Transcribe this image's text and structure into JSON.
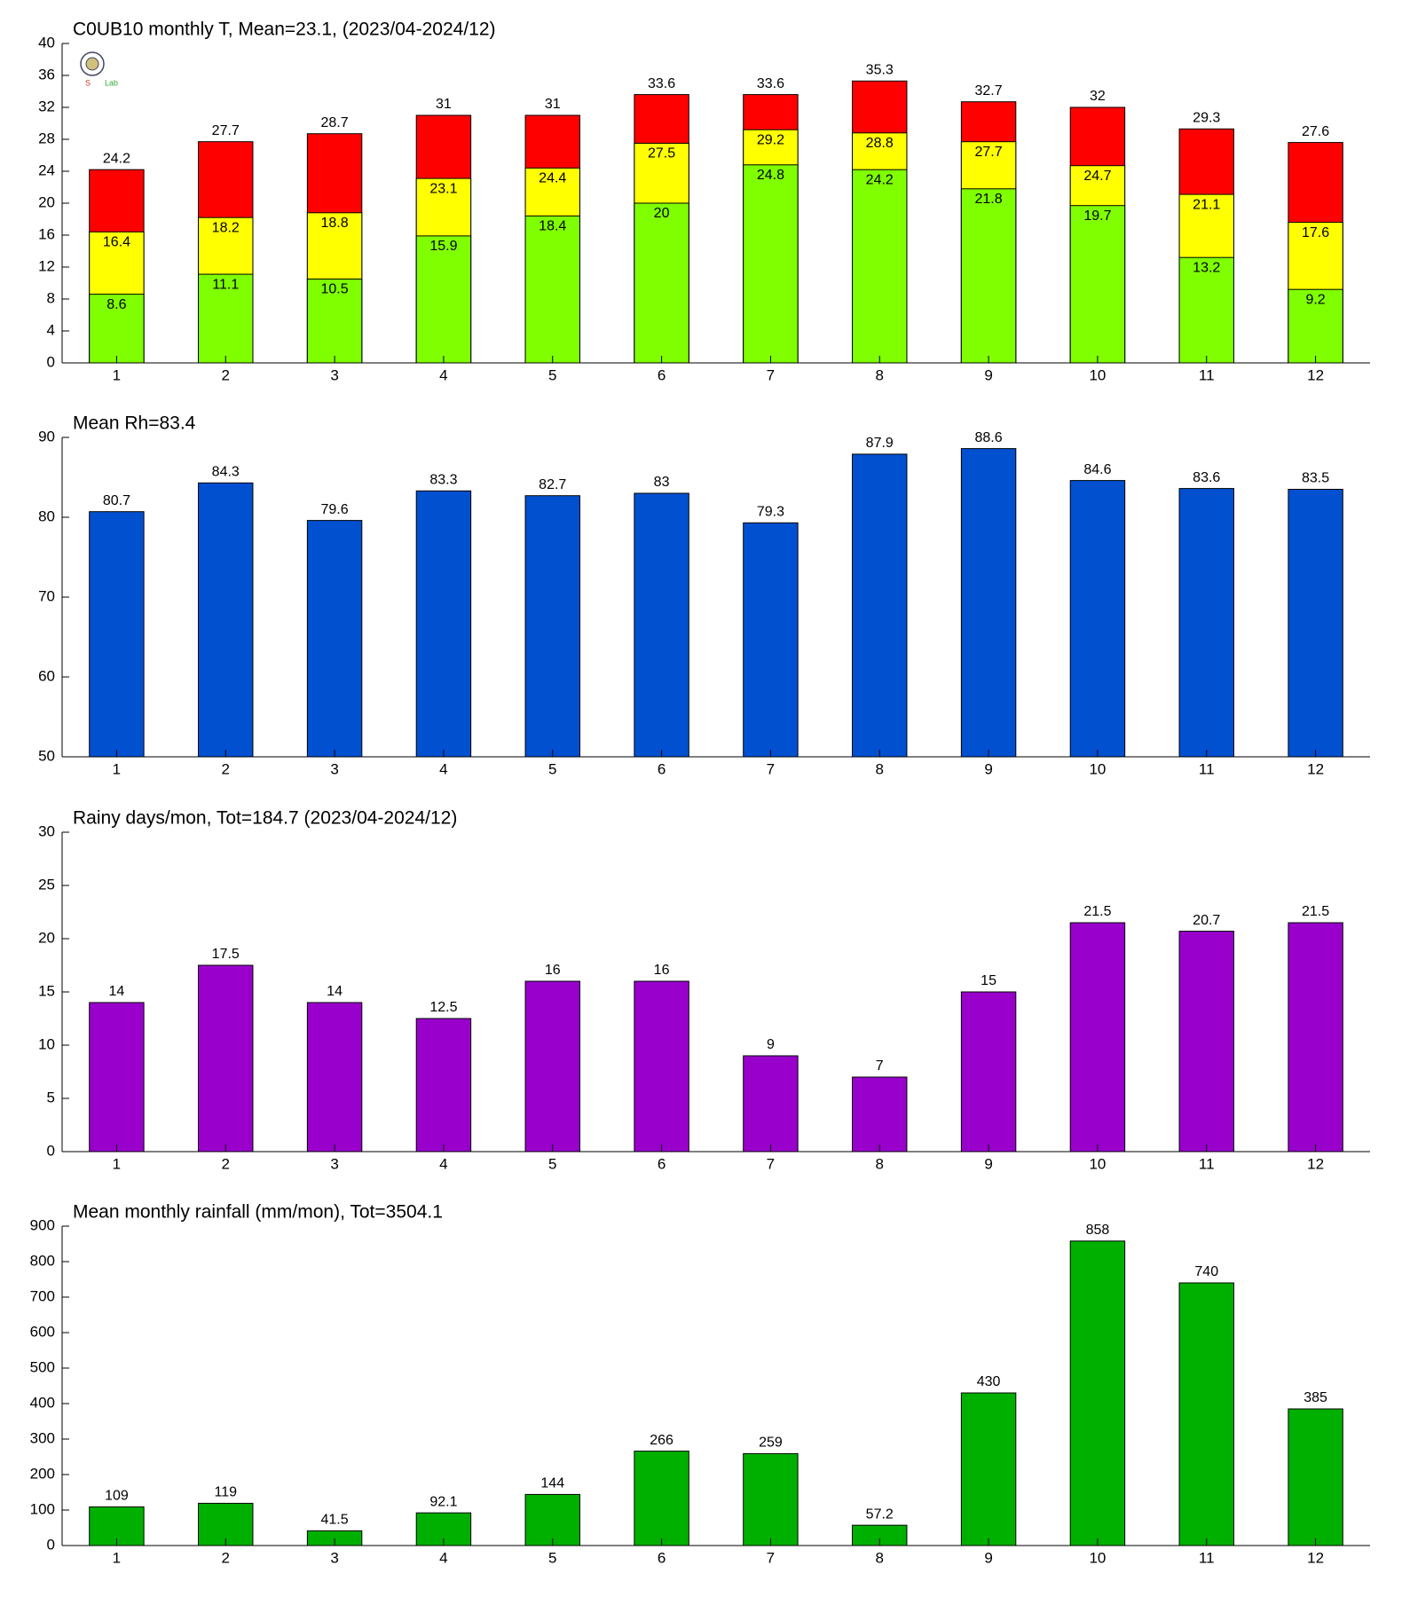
{
  "chart_data": [
    {
      "type": "overlap-bar",
      "title": "C0UB10 monthly T, Mean=23.1, (2023/04-2024/12)",
      "categories": [
        1,
        2,
        3,
        4,
        5,
        6,
        7,
        8,
        9,
        10,
        11,
        12
      ],
      "series": [
        {
          "color": "#ff0000",
          "values": [
            24.2,
            27.7,
            28.7,
            31,
            31,
            33.6,
            33.6,
            35.3,
            32.7,
            32,
            29.3,
            27.6
          ]
        },
        {
          "color": "#ffff00",
          "values": [
            16.4,
            18.2,
            18.8,
            23.1,
            24.4,
            27.5,
            29.2,
            28.8,
            27.7,
            24.7,
            21.1,
            17.6
          ]
        },
        {
          "color": "#80ff00",
          "values": [
            8.6,
            11.1,
            10.5,
            15.9,
            18.4,
            20,
            24.8,
            24.2,
            21.8,
            19.7,
            13.2,
            9.2
          ]
        }
      ],
      "ylim": [
        0,
        40
      ],
      "yticks": [
        0,
        4,
        8,
        12,
        16,
        20,
        24,
        28,
        32,
        36,
        40
      ]
    },
    {
      "type": "bar",
      "title": "Mean Rh=83.4",
      "categories": [
        1,
        2,
        3,
        4,
        5,
        6,
        7,
        8,
        9,
        10,
        11,
        12
      ],
      "values": [
        80.7,
        84.3,
        79.6,
        83.3,
        82.7,
        83,
        79.3,
        87.9,
        88.6,
        84.6,
        83.6,
        83.5
      ],
      "color": "#0050d0",
      "ylim": [
        50,
        90
      ],
      "yticks": [
        50,
        60,
        70,
        80,
        90
      ]
    },
    {
      "type": "bar",
      "title": "Rainy days/mon, Tot=184.7 (2023/04-2024/12)",
      "categories": [
        1,
        2,
        3,
        4,
        5,
        6,
        7,
        8,
        9,
        10,
        11,
        12
      ],
      "values": [
        14,
        17.5,
        14,
        12.5,
        16,
        16,
        9,
        7,
        15,
        21.5,
        20.7,
        21.5
      ],
      "color": "#9900cc",
      "ylim": [
        0,
        30
      ],
      "yticks": [
        0,
        5,
        10,
        15,
        20,
        25,
        30
      ]
    },
    {
      "type": "bar",
      "title": "Mean monthly rainfall (mm/mon), Tot=3504.1",
      "categories": [
        1,
        2,
        3,
        4,
        5,
        6,
        7,
        8,
        9,
        10,
        11,
        12
      ],
      "values": [
        109,
        119,
        41.5,
        92.1,
        144,
        266,
        259,
        57.2,
        430,
        858,
        740,
        385
      ],
      "color": "#00b000",
      "ylim": [
        0,
        900
      ],
      "yticks": [
        0,
        100,
        200,
        300,
        400,
        500,
        600,
        700,
        800,
        900
      ]
    }
  ]
}
